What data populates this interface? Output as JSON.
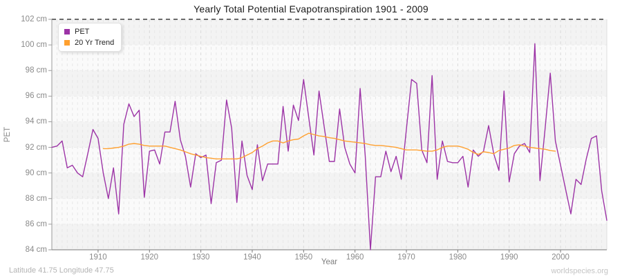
{
  "title": "Yearly Total Potential Evapotranspiration 1901 - 2009",
  "axes": {
    "y_label": "PET",
    "x_label": "Year"
  },
  "footer": {
    "coordinates": "Latitude 41.75 Longitude 47.75",
    "watermark": "worldspecies.org"
  },
  "colors": {
    "pet_line": "#9c33a6",
    "trend_line": "#ffa02f",
    "band_dark": "#f3f3f3",
    "band_light": "#fafafa",
    "grid_minor": "#e7e7e7",
    "grid_decade": "#d9d9d9",
    "top_dash": "#3c3c3c",
    "axis_line": "#9a9a9a",
    "right_border": "#dddddd"
  },
  "chart_data": {
    "type": "line",
    "title": "Yearly Total Potential Evapotranspiration 1901 - 2009",
    "xlabel": "Year",
    "ylabel": "PET",
    "xlim": [
      1901,
      2009
    ],
    "ylim": [
      84,
      102
    ],
    "grid": "vertical-dashed-yearly, alternating horizontal bands every 2 cm",
    "legend_position": "top-left",
    "y_ticks": [
      {
        "value": 102,
        "label": "102 cm"
      },
      {
        "value": 100,
        "label": "100 cm"
      },
      {
        "value": 98,
        "label": "98 cm"
      },
      {
        "value": 96,
        "label": "96 cm"
      },
      {
        "value": 94,
        "label": "94 cm"
      },
      {
        "value": 92,
        "label": "92 cm"
      },
      {
        "value": 90,
        "label": "90 cm"
      },
      {
        "value": 88,
        "label": "88 cm"
      },
      {
        "value": 86,
        "label": "86 cm"
      },
      {
        "value": 84,
        "label": "84 cm"
      }
    ],
    "x_ticks": [
      {
        "value": 1910,
        "label": "1910"
      },
      {
        "value": 1920,
        "label": "1920"
      },
      {
        "value": 1930,
        "label": "1930"
      },
      {
        "value": 1940,
        "label": "1940"
      },
      {
        "value": 1950,
        "label": "1950"
      },
      {
        "value": 1960,
        "label": "1960"
      },
      {
        "value": 1970,
        "label": "1970"
      },
      {
        "value": 1980,
        "label": "1980"
      },
      {
        "value": 1990,
        "label": "1990"
      },
      {
        "value": 2000,
        "label": "2000"
      }
    ],
    "series": [
      {
        "name": "PET",
        "color": "#9c33a6",
        "start_year": 1901,
        "values": [
          92.0,
          92.1,
          92.5,
          90.4,
          90.6,
          90.0,
          89.7,
          91.5,
          93.4,
          92.7,
          90.0,
          88.0,
          90.4,
          86.8,
          93.8,
          95.4,
          94.4,
          94.9,
          88.1,
          91.7,
          91.8,
          90.7,
          93.2,
          93.2,
          95.6,
          92.6,
          91.3,
          88.9,
          91.5,
          91.2,
          91.4,
          87.6,
          90.8,
          91.0,
          95.7,
          93.5,
          87.7,
          92.5,
          89.8,
          88.7,
          92.2,
          89.4,
          90.7,
          90.7,
          90.7,
          95.2,
          91.7,
          95.3,
          94.1,
          97.3,
          94.3,
          91.4,
          96.4,
          93.6,
          90.9,
          90.9,
          95.0,
          92.0,
          90.7,
          90.0,
          96.6,
          91.3,
          84.0,
          89.7,
          89.7,
          91.7,
          90.1,
          91.3,
          89.5,
          93.4,
          97.3,
          97.0,
          91.8,
          90.8,
          97.6,
          89.5,
          92.5,
          90.9,
          90.8,
          90.8,
          91.3,
          88.9,
          91.8,
          91.3,
          91.7,
          93.7,
          91.5,
          90.2,
          96.4,
          89.3,
          91.5,
          92.1,
          92.3,
          91.6,
          100.1,
          89.4,
          93.5,
          97.8,
          92.5,
          90.6,
          88.7,
          86.8,
          89.5,
          89.1,
          91.1,
          92.7,
          92.9,
          88.6,
          86.3
        ]
      },
      {
        "name": "20 Yr Trend",
        "color": "#ffa02f",
        "start_year": 1911,
        "values": [
          91.9,
          91.9,
          91.95,
          92.0,
          92.1,
          92.25,
          92.3,
          92.25,
          92.15,
          92.1,
          92.1,
          92.1,
          92.1,
          92.0,
          91.9,
          91.8,
          91.65,
          91.5,
          91.4,
          91.3,
          91.2,
          91.15,
          91.1,
          91.1,
          91.1,
          91.1,
          91.1,
          91.2,
          91.4,
          91.6,
          91.9,
          92.1,
          92.35,
          92.5,
          92.5,
          92.35,
          92.5,
          92.6,
          92.65,
          92.9,
          93.1,
          93.0,
          92.9,
          92.85,
          92.75,
          92.7,
          92.6,
          92.5,
          92.45,
          92.4,
          92.35,
          92.3,
          92.2,
          92.15,
          92.15,
          92.1,
          92.05,
          92.0,
          91.9,
          91.8,
          91.8,
          91.8,
          91.75,
          91.7,
          91.7,
          91.8,
          92.0,
          92.1,
          92.1,
          92.1,
          92.0,
          91.85,
          91.6,
          91.45,
          91.65,
          91.6,
          91.5,
          91.75,
          91.85,
          91.95,
          92.15,
          92.2,
          92.1,
          92.0,
          91.95,
          91.9,
          91.85,
          91.75,
          91.7
        ]
      }
    ]
  },
  "legend": {
    "items": [
      {
        "label": "PET",
        "color": "#9c33a6"
      },
      {
        "label": "20 Yr Trend",
        "color": "#ffa02f"
      }
    ]
  }
}
